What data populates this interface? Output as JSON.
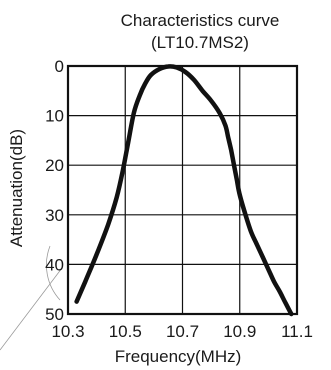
{
  "chart_data": {
    "type": "line",
    "title": [
      "Characteristics curve",
      "(LT10.7MS2)"
    ],
    "xlabel": "Frequency(MHz)",
    "ylabel": "Attenuation(dB)",
    "x_ticks": [
      "10.3",
      "10.5",
      "10.7",
      "10.9",
      "11.1"
    ],
    "y_ticks": [
      "0",
      "10",
      "20",
      "30",
      "40",
      "50"
    ],
    "xlim": [
      10.3,
      11.1
    ],
    "ylim": [
      0,
      50
    ],
    "y_inverted": true,
    "grid": true,
    "series": [
      {
        "color": "#111111",
        "x": [
          10.33,
          10.36,
          10.4,
          10.44,
          10.47,
          10.49,
          10.51,
          10.53,
          10.55,
          10.57,
          10.59,
          10.62,
          10.65,
          10.68,
          10.71,
          10.74,
          10.77,
          10.8,
          10.83,
          10.85,
          10.86,
          10.87,
          10.88,
          10.89,
          10.9,
          10.92,
          10.94,
          10.96,
          10.98,
          11.0,
          11.02,
          11.04,
          11.06,
          11.08
        ],
        "y": [
          47.5,
          43.5,
          38.0,
          32.0,
          26.5,
          21.5,
          15.5,
          9.5,
          6.0,
          3.5,
          1.8,
          0.6,
          0.1,
          0.3,
          1.2,
          2.8,
          5.0,
          7.0,
          9.5,
          12.0,
          14.5,
          17.0,
          20.0,
          23.0,
          26.0,
          30.0,
          33.5,
          36.0,
          38.5,
          41.0,
          43.5,
          45.5,
          47.8,
          50.0
        ]
      }
    ]
  }
}
